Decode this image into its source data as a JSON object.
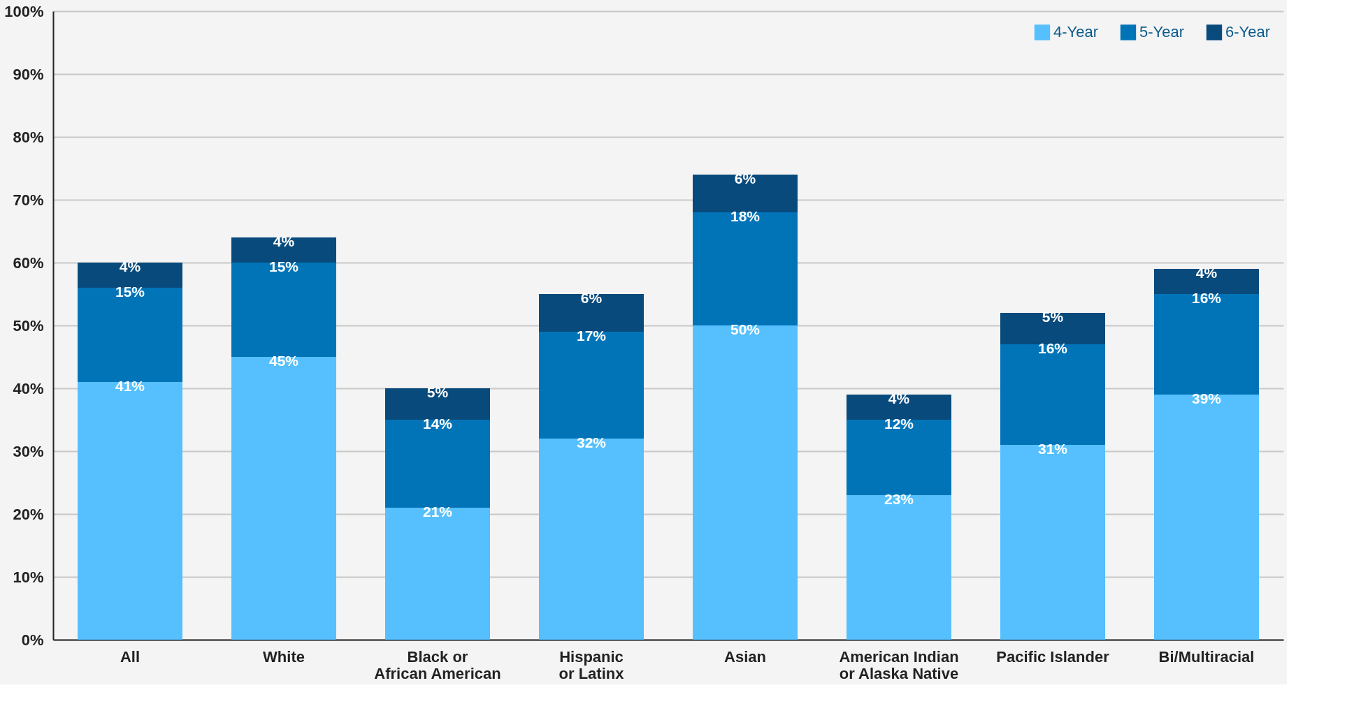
{
  "chart_data": {
    "type": "bar",
    "stacked": true,
    "categories": [
      "All",
      "White",
      "Black or\nAfrican American",
      "Hispanic\nor Latinx",
      "Asian",
      "American Indian\nor Alaska Native",
      "Pacific Islander",
      "Bi/Multiracial"
    ],
    "series": [
      {
        "name": "4-Year",
        "color": "#55c0fd",
        "values": [
          41,
          45,
          21,
          32,
          50,
          23,
          31,
          39
        ],
        "value_labels": [
          "41%",
          "45%",
          "21%",
          "32%",
          "50%",
          "23%",
          "31%",
          "39%"
        ]
      },
      {
        "name": "5-Year",
        "color": "#0174b8",
        "values": [
          15,
          15,
          14,
          17,
          18,
          12,
          16,
          16
        ],
        "value_labels": [
          "15%",
          "15%",
          "14%",
          "17%",
          "18%",
          "12%",
          "16%",
          "16%"
        ]
      },
      {
        "name": "6-Year",
        "color": "#084a7c",
        "values": [
          4,
          4,
          5,
          6,
          6,
          4,
          5,
          4
        ],
        "value_labels": [
          "4%",
          "4%",
          "5%",
          "6%",
          "6%",
          "4%",
          "5%",
          "4%"
        ]
      }
    ],
    "ylim": [
      0,
      100
    ],
    "yticks": [
      {
        "value": 0,
        "label": "0%"
      },
      {
        "value": 10,
        "label": "10%"
      },
      {
        "value": 20,
        "label": "20%"
      },
      {
        "value": 30,
        "label": "30%"
      },
      {
        "value": 40,
        "label": "40%"
      },
      {
        "value": 50,
        "label": "50%"
      },
      {
        "value": 60,
        "label": "60%"
      },
      {
        "value": 70,
        "label": "70%"
      },
      {
        "value": 80,
        "label": "80%"
      },
      {
        "value": 90,
        "label": "90%"
      },
      {
        "value": 100,
        "label": "100%"
      }
    ],
    "grid": "y",
    "legend": "top right"
  }
}
